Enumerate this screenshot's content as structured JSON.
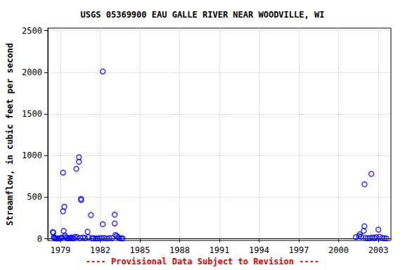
{
  "chart_data": {
    "type": "scatter",
    "title": "USGS 05369900 EAU GALLE RIVER NEAR WOODVILLE, WI",
    "y_label": "Streamflow, in cubic feet per second",
    "annotation": "---- Provisional Data Subject to Revision ----",
    "x": [
      1978.42,
      1978.47,
      1978.5,
      1978.55,
      1978.6,
      1978.7,
      1978.8,
      1978.9,
      1979.0,
      1979.1,
      1979.2,
      1979.2,
      1979.25,
      1979.3,
      1979.35,
      1979.4,
      1979.5,
      1979.6,
      1979.7,
      1979.8,
      1979.9,
      1980.0,
      1980.1,
      1980.2,
      1980.25,
      1980.4,
      1980.4,
      1980.5,
      1980.55,
      1980.57,
      1980.7,
      1980.85,
      1981.05,
      1981.1,
      1981.3,
      1981.4,
      1981.5,
      1981.65,
      1981.8,
      1981.95,
      1982.1,
      1982.2,
      1982.2,
      1982.3,
      1982.5,
      1982.7,
      1982.9,
      1983.1,
      1983.1,
      1983.15,
      1983.25,
      1983.35,
      1983.45,
      1983.6,
      1983.7,
      2001.3,
      2001.55,
      2001.6,
      2001.7,
      2001.9,
      2001.95,
      2001.95,
      2002.05,
      2002.2,
      2002.35,
      2002.47,
      2002.55,
      2002.7,
      2002.85,
      2003.0,
      2003.1,
      2003.3,
      2003.45,
      2003.6
    ],
    "values": [
      80,
      75,
      20,
      10,
      5,
      5,
      3,
      5,
      8,
      15,
      795,
      330,
      95,
      385,
      40,
      20,
      10,
      5,
      8,
      15,
      10,
      5,
      25,
      840,
      20,
      980,
      925,
      10,
      480,
      465,
      15,
      10,
      85,
      20,
      285,
      10,
      5,
      5,
      5,
      8,
      10,
      2010,
      175,
      10,
      5,
      8,
      10,
      290,
      185,
      45,
      35,
      20,
      8,
      5,
      5,
      20,
      30,
      55,
      25,
      95,
      150,
      655,
      10,
      8,
      10,
      780,
      15,
      10,
      20,
      110,
      25,
      10,
      8,
      5
    ],
    "color": "#0000ff",
    "marker": "open_circle",
    "xlim": [
      1978.05,
      2003.95
    ],
    "xticks": [
      1979,
      1982,
      1985,
      1988,
      1991,
      1994,
      1997,
      2000,
      2003
    ],
    "ylim": [
      -20,
      2530
    ],
    "yticks": [
      0,
      500,
      1000,
      1500,
      2000,
      2500
    ],
    "grid": true
  }
}
